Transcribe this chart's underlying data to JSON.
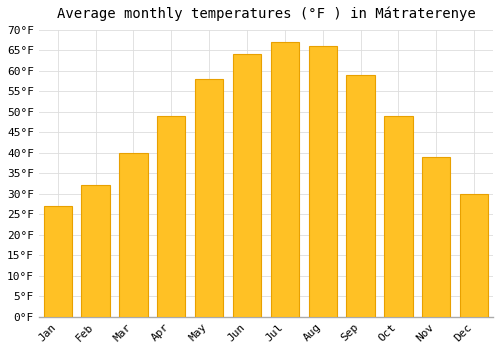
{
  "title": "Average monthly temperatures (°F ) in Mátraterenye",
  "months": [
    "Jan",
    "Feb",
    "Mar",
    "Apr",
    "May",
    "Jun",
    "Jul",
    "Aug",
    "Sep",
    "Oct",
    "Nov",
    "Dec"
  ],
  "values": [
    27,
    32,
    40,
    49,
    58,
    64,
    67,
    66,
    59,
    49,
    39,
    30
  ],
  "bar_color": "#FFC125",
  "bar_edge_color": "#E8A000",
  "ylim": [
    0,
    70
  ],
  "yticks": [
    0,
    5,
    10,
    15,
    20,
    25,
    30,
    35,
    40,
    45,
    50,
    55,
    60,
    65,
    70
  ],
  "ylabel_suffix": "°F",
  "bg_color": "#ffffff",
  "grid_color": "#dddddd",
  "title_fontsize": 10,
  "tick_fontsize": 8,
  "font_family": "monospace"
}
